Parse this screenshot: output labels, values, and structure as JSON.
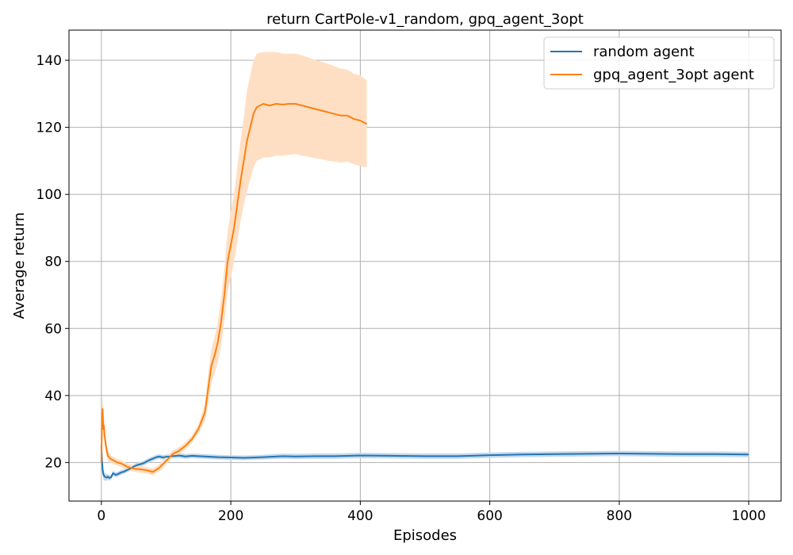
{
  "chart_data": {
    "type": "line",
    "title": "return CartPole-v1_random, gpq_agent_3opt",
    "xlabel": "Episodes",
    "ylabel": "Average return",
    "xlim": [
      -50,
      1050
    ],
    "ylim": [
      8.5,
      149
    ],
    "xticks": [
      0,
      200,
      400,
      600,
      800,
      1000
    ],
    "yticks": [
      20,
      40,
      60,
      80,
      100,
      120,
      140
    ],
    "grid": true,
    "legend_position": "top-right",
    "series": [
      {
        "name": "random agent",
        "color": "#1f77b4",
        "band_color": "#c6d8ec",
        "x": [
          0,
          1,
          2,
          3,
          5,
          8,
          10,
          12,
          15,
          18,
          20,
          22,
          25,
          30,
          35,
          40,
          45,
          50,
          55,
          60,
          65,
          70,
          75,
          80,
          85,
          90,
          95,
          100,
          110,
          120,
          130,
          140,
          160,
          180,
          200,
          220,
          250,
          280,
          300,
          330,
          360,
          400,
          450,
          500,
          550,
          600,
          650,
          700,
          750,
          800,
          850,
          900,
          950,
          1000
        ],
        "y": [
          25,
          20.5,
          18,
          16.5,
          15.8,
          15.5,
          15.8,
          15.4,
          15.6,
          16.8,
          16.6,
          16.3,
          16.5,
          17.0,
          17.3,
          17.8,
          18.2,
          18.8,
          19.2,
          19.5,
          19.8,
          20.3,
          20.8,
          21.2,
          21.6,
          21.8,
          21.5,
          21.7,
          21.9,
          22.1,
          21.8,
          22.0,
          21.8,
          21.6,
          21.5,
          21.4,
          21.6,
          21.9,
          21.8,
          21.9,
          21.9,
          22.1,
          22.0,
          21.9,
          21.9,
          22.2,
          22.4,
          22.5,
          22.6,
          22.7,
          22.6,
          22.5,
          22.5,
          22.4
        ],
        "band_lo": [
          22,
          18,
          16.2,
          15.0,
          14.6,
          14.6,
          14.9,
          14.6,
          14.9,
          16.0,
          15.9,
          15.6,
          15.8,
          16.3,
          16.6,
          17.1,
          17.5,
          18.1,
          18.5,
          18.8,
          19.1,
          19.6,
          20.1,
          20.5,
          20.9,
          21.1,
          20.8,
          21.0,
          21.2,
          21.4,
          21.1,
          21.3,
          21.1,
          20.9,
          20.8,
          20.7,
          20.9,
          21.1,
          21.0,
          21.1,
          21.1,
          21.3,
          21.2,
          21.1,
          21.1,
          21.4,
          21.6,
          21.7,
          21.8,
          21.9,
          21.8,
          21.7,
          21.7,
          21.6
        ],
        "band_hi": [
          28,
          23,
          19.8,
          18.0,
          17.0,
          16.4,
          16.7,
          16.2,
          16.3,
          17.6,
          17.3,
          17.0,
          17.2,
          17.7,
          18.0,
          18.5,
          18.9,
          19.5,
          19.9,
          20.2,
          20.5,
          21.0,
          21.5,
          21.9,
          22.3,
          22.5,
          22.2,
          22.4,
          22.6,
          22.8,
          22.5,
          22.7,
          22.5,
          22.3,
          22.2,
          22.1,
          22.3,
          22.7,
          22.6,
          22.7,
          22.7,
          22.9,
          22.8,
          22.7,
          22.7,
          23.0,
          23.2,
          23.3,
          23.4,
          23.5,
          23.4,
          23.3,
          23.3,
          23.2
        ]
      },
      {
        "name": "gpq_agent_3opt agent",
        "color": "#ff7f0e",
        "band_color": "#ffdfc4",
        "x": [
          0,
          1,
          2,
          3,
          4,
          5,
          7,
          10,
          15,
          20,
          25,
          30,
          35,
          40,
          50,
          60,
          70,
          80,
          90,
          100,
          110,
          120,
          130,
          140,
          150,
          160,
          165,
          170,
          175,
          180,
          185,
          190,
          195,
          200,
          205,
          210,
          215,
          220,
          225,
          230,
          235,
          240,
          250,
          260,
          270,
          280,
          290,
          300,
          310,
          320,
          330,
          340,
          350,
          360,
          370,
          380,
          390,
          400,
          410
        ],
        "y": [
          20,
          33,
          36,
          30,
          31,
          28,
          25,
          22,
          21,
          20.5,
          20,
          19.8,
          19.3,
          18.7,
          18.2,
          18.0,
          17.7,
          17.2,
          18.5,
          20.5,
          22.5,
          23.5,
          25.0,
          27.0,
          30.0,
          35.0,
          42.0,
          49.0,
          52.0,
          56.0,
          62.0,
          70.0,
          80.0,
          85.0,
          90.0,
          97.0,
          104.0,
          110.0,
          116.0,
          120.0,
          124.0,
          126.0,
          127.0,
          126.5,
          127.0,
          126.8,
          127.0,
          127.0,
          126.5,
          126.0,
          125.5,
          125.0,
          124.5,
          124.0,
          123.5,
          123.5,
          122.5,
          122.0,
          121.0
        ],
        "band_lo": [
          18,
          29,
          32,
          27,
          28,
          25.5,
          23,
          20.5,
          19.8,
          19.4,
          19.0,
          18.8,
          18.3,
          17.7,
          17.2,
          17.0,
          16.7,
          16.2,
          17.4,
          19.4,
          21.4,
          22.4,
          23.9,
          25.9,
          28.7,
          32.5,
          37.5,
          44.0,
          46.5,
          50.0,
          55.0,
          62.0,
          71.0,
          75.0,
          80.0,
          86.0,
          92.0,
          97.0,
          101.0,
          104.5,
          108.0,
          110.0,
          111.0,
          111.0,
          111.5,
          111.5,
          111.8,
          112.0,
          111.5,
          111.2,
          110.8,
          110.5,
          110.0,
          109.8,
          109.5,
          109.8,
          109.0,
          108.5,
          108.0
        ],
        "band_hi": [
          22,
          37,
          40,
          33,
          34,
          30.5,
          27,
          23.5,
          22.2,
          21.6,
          21.0,
          20.8,
          20.3,
          19.7,
          19.2,
          19.0,
          18.7,
          18.2,
          19.6,
          21.6,
          23.6,
          24.6,
          26.1,
          28.1,
          31.3,
          37.5,
          46.5,
          54.0,
          57.5,
          62.0,
          69.0,
          78.0,
          89.0,
          95.0,
          100.0,
          108.0,
          116.0,
          123.0,
          131.0,
          135.5,
          140.0,
          142.0,
          142.5,
          142.5,
          142.5,
          142.0,
          142.0,
          142.0,
          141.5,
          140.8,
          140.2,
          139.5,
          139.0,
          138.2,
          137.5,
          137.2,
          136.0,
          135.5,
          134.0
        ]
      }
    ]
  }
}
